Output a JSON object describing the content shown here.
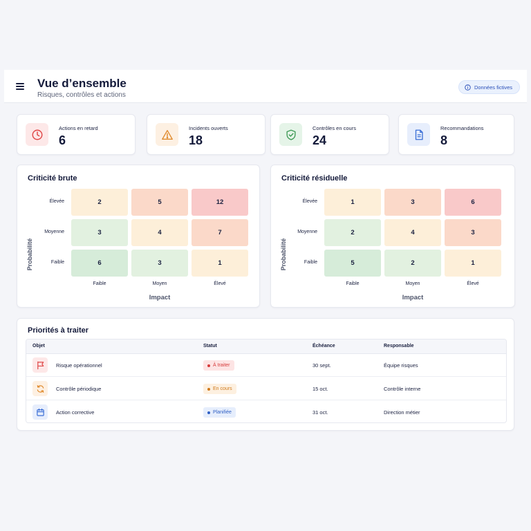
{
  "header": {
    "title": "Vue d’ensemble",
    "subtitle": "Risques, contrôles et actions",
    "badge": "Données fictives"
  },
  "kpis": [
    {
      "label": "Actions en retard",
      "value": "6",
      "icon": "clock-icon",
      "color": "#e04848",
      "bg": "#fde8e8"
    },
    {
      "label": "Incidents ouverts",
      "value": "18",
      "icon": "warning-icon",
      "color": "#e08a2c",
      "bg": "#fdf0e2"
    },
    {
      "label": "Contrôles en cours",
      "value": "24",
      "icon": "shield-check-icon",
      "color": "#3d9a55",
      "bg": "#e5f4e8"
    },
    {
      "label": "Recommandations",
      "value": "8",
      "icon": "document-icon",
      "color": "#3b6fd6",
      "bg": "#e7eefc"
    }
  ],
  "matrices": [
    {
      "title": "Criticité brute",
      "ylabel": "Probabilité",
      "xlabel": "Impact",
      "rows": [
        "Élevée",
        "Moyenne",
        "Faible"
      ],
      "cols": [
        "Faible",
        "Moyen",
        "Élevé"
      ],
      "values": [
        [
          "2",
          "5",
          "12"
        ],
        [
          "3",
          "4",
          "7"
        ],
        [
          "6",
          "3",
          "1"
        ]
      ],
      "colors": [
        [
          "#fdefd9",
          "#fbd9c9",
          "#f9c9c9"
        ],
        [
          "#e2f1e0",
          "#fdefd9",
          "#fbd9c9"
        ],
        [
          "#d6ecd9",
          "#e2f1e0",
          "#fdefd9"
        ]
      ]
    },
    {
      "title": "Criticité résiduelle",
      "ylabel": "Probabilité",
      "xlabel": "Impact",
      "rows": [
        "Élevée",
        "Moyenne",
        "Faible"
      ],
      "cols": [
        "Faible",
        "Moyen",
        "Élevé"
      ],
      "values": [
        [
          "1",
          "3",
          "6"
        ],
        [
          "2",
          "4",
          "3"
        ],
        [
          "5",
          "2",
          "1"
        ]
      ],
      "colors": [
        [
          "#fdefd9",
          "#fbd9c9",
          "#f9c9c9"
        ],
        [
          "#e2f1e0",
          "#fdefd9",
          "#fbd9c9"
        ],
        [
          "#d6ecd9",
          "#e2f1e0",
          "#fdefd9"
        ]
      ]
    }
  ],
  "priorities": {
    "title": "Priorités à traiter",
    "columns": [
      "Objet",
      "Statut",
      "Échéance",
      "Responsable"
    ],
    "rows": [
      {
        "object": "Risque opérationnel",
        "status": "À traiter",
        "due": "30 sept.",
        "owner": "Équipe risques",
        "icon": "flag-icon",
        "icon_color": "#e04848",
        "icon_bg": "#fde8e8",
        "status_color": "#d63b3b",
        "status_bg": "#fde4e4"
      },
      {
        "object": "Contrôle périodique",
        "status": "En cours",
        "due": "15 oct.",
        "owner": "Contrôle interne",
        "icon": "refresh-icon",
        "icon_color": "#e08a2c",
        "icon_bg": "#fdf0e2",
        "status_color": "#d07a1c",
        "status_bg": "#fdf0e0"
      },
      {
        "object": "Action corrective",
        "status": "Planifiée",
        "due": "31 oct.",
        "owner": "Direction métier",
        "icon": "calendar-icon",
        "icon_color": "#3b6fd6",
        "icon_bg": "#e7eefc",
        "status_color": "#2e5fc4",
        "status_bg": "#e6eefc"
      }
    ]
  }
}
